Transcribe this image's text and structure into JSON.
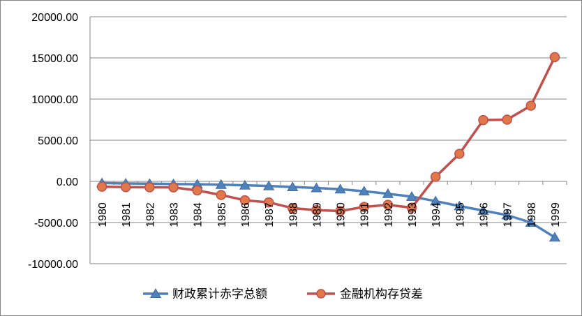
{
  "chart_data": {
    "type": "line",
    "title": "",
    "xlabel": "",
    "ylabel": "",
    "ylim": [
      -10000,
      20000
    ],
    "y_ticks": [
      "20000.00",
      "15000.00",
      "10000.00",
      "5000.00",
      "0.00",
      "-5000.00",
      "-10000.00"
    ],
    "y_tick_values": [
      20000,
      15000,
      10000,
      5000,
      0,
      -5000,
      -10000
    ],
    "grid": "horizontal",
    "legend": "bottom",
    "categories": [
      "1980",
      "1981",
      "1982",
      "1983",
      "1984",
      "1985",
      "1986",
      "1987",
      "1988",
      "1989",
      "1990",
      "1991",
      "1992",
      "1993",
      "1994",
      "1995",
      "1996",
      "1997",
      "1998",
      "1999"
    ],
    "series": [
      {
        "name": "财政累计赤字总额",
        "color": "#4F81BD",
        "marker": "triangle",
        "values": [
          -200,
          -250,
          -280,
          -320,
          -350,
          -400,
          -480,
          -560,
          -680,
          -800,
          -950,
          -1200,
          -1500,
          -1850,
          -2400,
          -3000,
          -3550,
          -4100,
          -5000,
          -6800
        ]
      },
      {
        "name": "金融机构存贷差",
        "color": "#C0504D",
        "marker": "circle",
        "values": [
          -650,
          -700,
          -720,
          -730,
          -1100,
          -1650,
          -2300,
          -2550,
          -3250,
          -3500,
          -3600,
          -3100,
          -2850,
          -3200,
          550,
          3350,
          7450,
          7500,
          9200,
          15100
        ]
      }
    ]
  }
}
